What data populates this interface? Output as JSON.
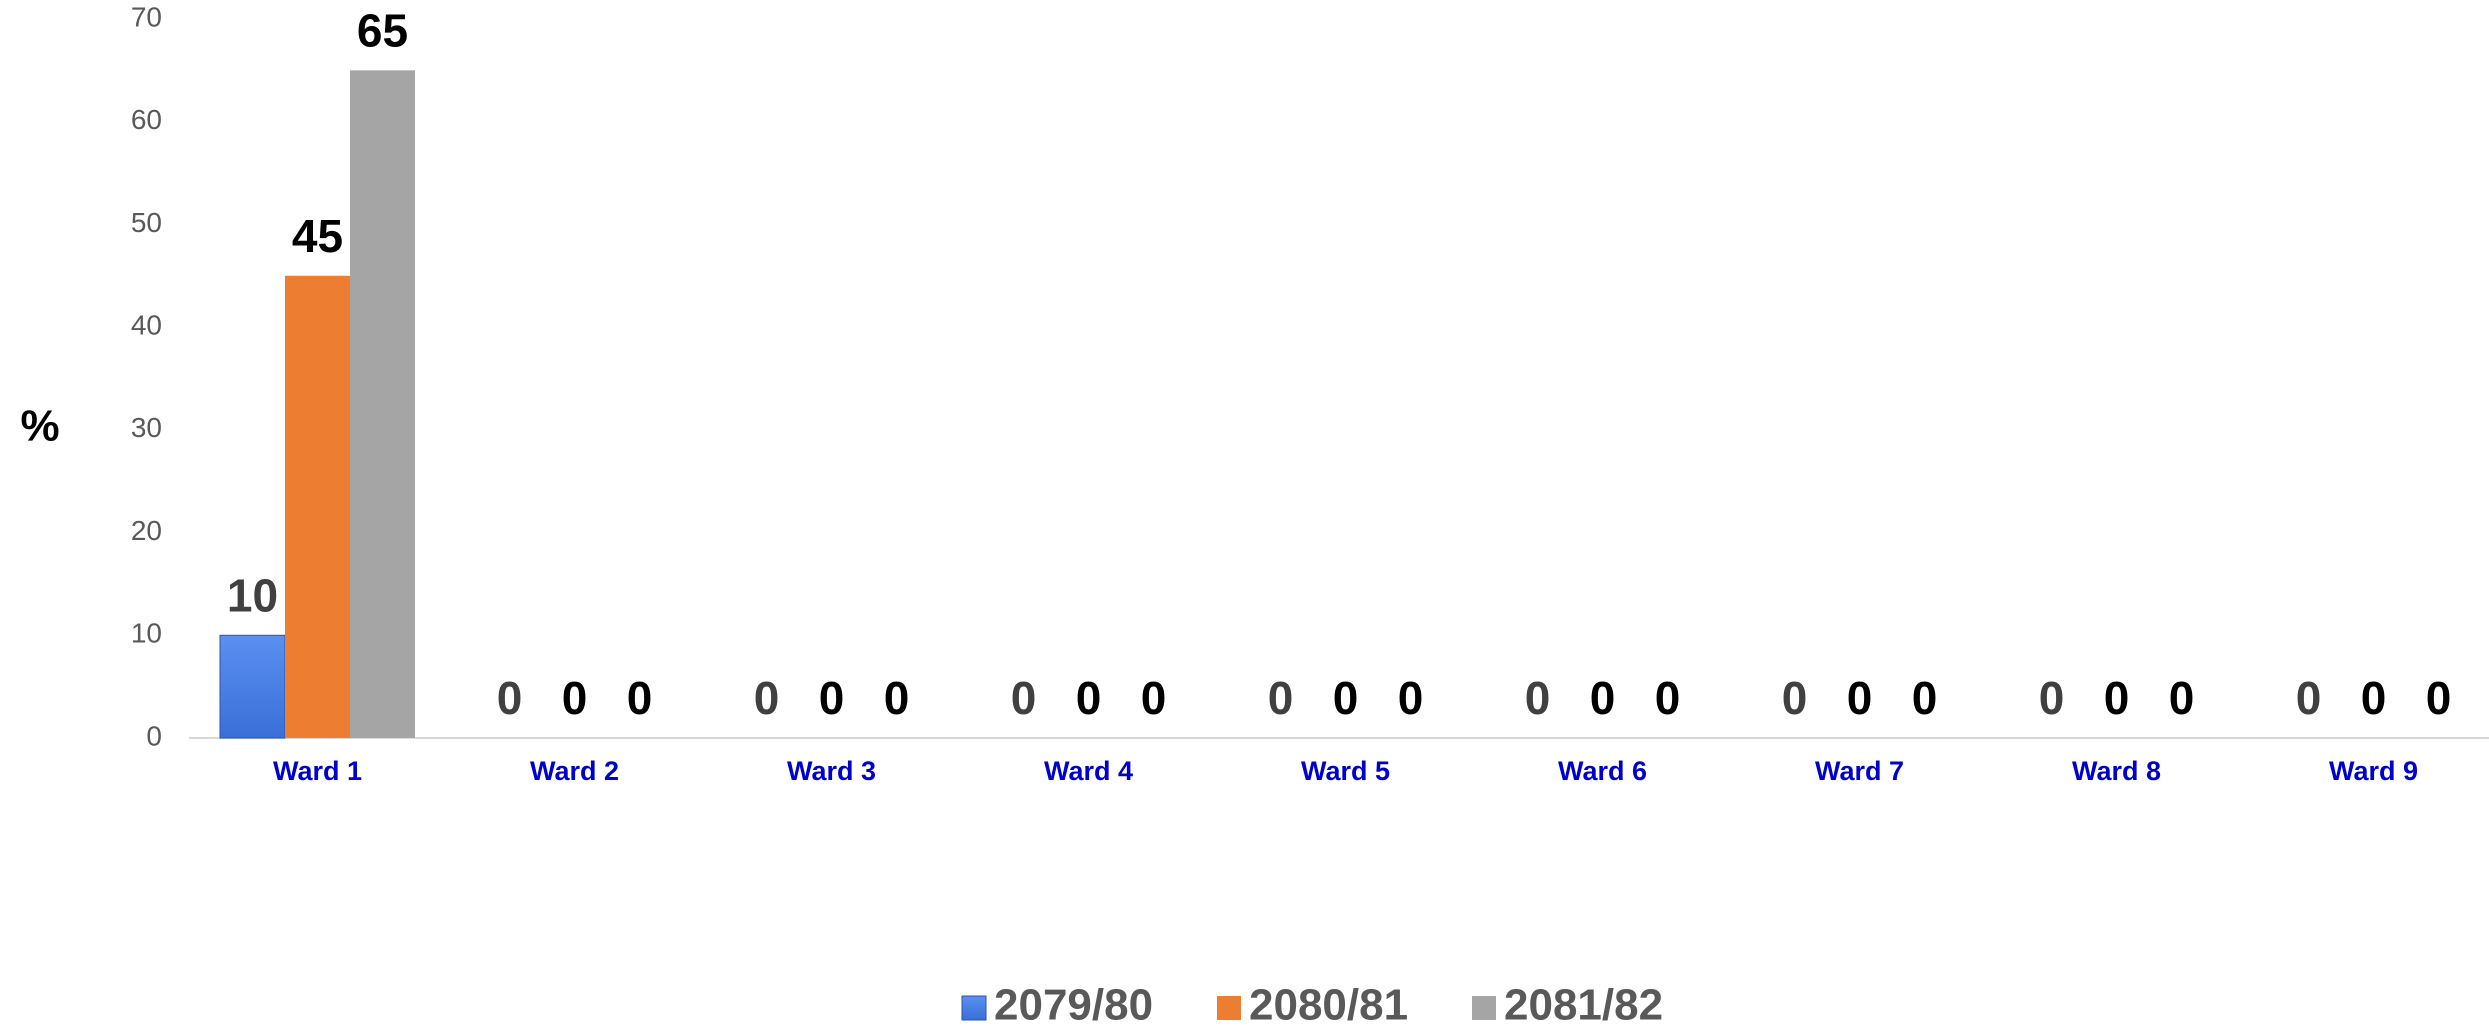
{
  "chart_data": {
    "type": "bar",
    "y_label": "%",
    "categories": [
      "Ward 1",
      "Ward 2",
      "Ward 3",
      "Ward 4",
      "Ward 5",
      "Ward 6",
      "Ward 7",
      "Ward 8",
      "Ward 9"
    ],
    "series": [
      {
        "name": "2079/80",
        "color": "#3a6fd8",
        "values": [
          10,
          0,
          0,
          0,
          0,
          0,
          0,
          0,
          0
        ]
      },
      {
        "name": "2080/81",
        "color": "#ed7d31",
        "values": [
          45,
          0,
          0,
          0,
          0,
          0,
          0,
          0,
          0
        ]
      },
      {
        "name": "2081/82",
        "color": "#a5a5a5",
        "values": [
          65,
          0,
          0,
          0,
          0,
          0,
          0,
          0,
          0
        ]
      }
    ],
    "ylim": [
      0,
      70
    ],
    "yticks": [
      0,
      10,
      20,
      30,
      40,
      50,
      60,
      70
    ],
    "grid": false,
    "legend": "bottom"
  }
}
